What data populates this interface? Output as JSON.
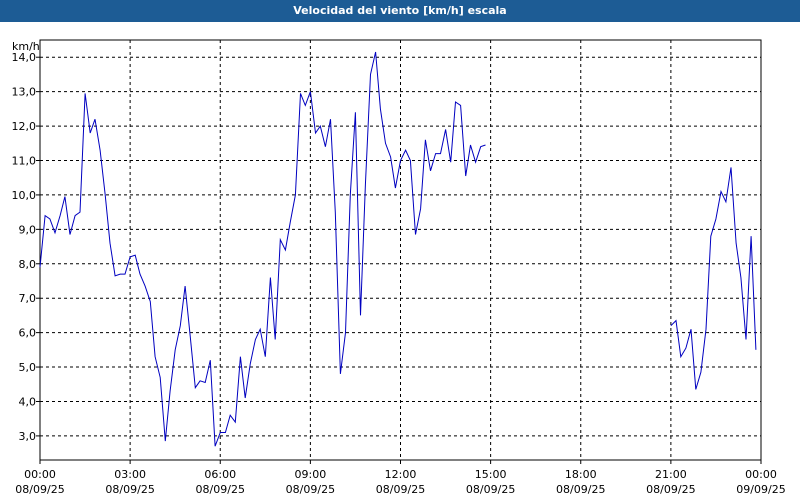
{
  "window": {
    "title": "Velocidad del viento [km/h] escala"
  },
  "chart_data": {
    "type": "line",
    "title": "Velocidad del viento [km/h] escala",
    "ylabel": "km/h",
    "xlabel": "",
    "ylim": [
      2.3,
      14.5
    ],
    "y_ticks": [
      "3,0",
      "4,0",
      "5,0",
      "6,0",
      "7,0",
      "8,0",
      "9,0",
      "10,0",
      "11,0",
      "12,0",
      "13,0",
      "14,0"
    ],
    "y_tick_values": [
      3,
      4,
      5,
      6,
      7,
      8,
      9,
      10,
      11,
      12,
      13,
      14
    ],
    "xlim_hours": [
      0,
      24
    ],
    "x_ticks": [
      {
        "h": 0,
        "time": "00:00",
        "date": "08/09/25"
      },
      {
        "h": 3,
        "time": "03:00",
        "date": "08/09/25"
      },
      {
        "h": 6,
        "time": "06:00",
        "date": "08/09/25"
      },
      {
        "h": 9,
        "time": "09:00",
        "date": "08/09/25"
      },
      {
        "h": 12,
        "time": "12:00",
        "date": "08/09/25"
      },
      {
        "h": 15,
        "time": "15:00",
        "date": "08/09/25"
      },
      {
        "h": 18,
        "time": "18:00",
        "date": "08/09/25"
      },
      {
        "h": 21,
        "time": "21:00",
        "date": "08/09/25"
      },
      {
        "h": 24,
        "time": "00:00",
        "date": "09/09/25"
      }
    ],
    "grid": true,
    "series": [
      {
        "color": "#0000c0",
        "segments": [
          [
            [
              0.0,
              7.9
            ],
            [
              0.17,
              9.4
            ],
            [
              0.33,
              9.3
            ],
            [
              0.5,
              8.9
            ],
            [
              0.67,
              9.4
            ],
            [
              0.83,
              9.95
            ],
            [
              1.0,
              8.85
            ],
            [
              1.17,
              9.4
            ],
            [
              1.33,
              9.5
            ],
            [
              1.5,
              12.95
            ],
            [
              1.67,
              11.8
            ],
            [
              1.83,
              12.2
            ],
            [
              2.0,
              11.3
            ],
            [
              2.17,
              10.0
            ],
            [
              2.33,
              8.6
            ],
            [
              2.5,
              7.65
            ],
            [
              2.67,
              7.7
            ],
            [
              2.83,
              7.7
            ],
            [
              3.0,
              8.2
            ],
            [
              3.17,
              8.25
            ],
            [
              3.33,
              7.7
            ],
            [
              3.5,
              7.35
            ],
            [
              3.67,
              6.9
            ],
            [
              3.83,
              5.3
            ],
            [
              4.0,
              4.7
            ],
            [
              4.17,
              2.85
            ],
            [
              4.33,
              4.3
            ],
            [
              4.5,
              5.5
            ],
            [
              4.67,
              6.2
            ],
            [
              4.83,
              7.35
            ],
            [
              5.0,
              5.9
            ],
            [
              5.17,
              4.4
            ],
            [
              5.33,
              4.6
            ],
            [
              5.5,
              4.55
            ],
            [
              5.67,
              5.2
            ],
            [
              5.83,
              2.7
            ],
            [
              6.0,
              3.1
            ],
            [
              6.17,
              3.1
            ],
            [
              6.33,
              3.6
            ],
            [
              6.5,
              3.4
            ],
            [
              6.67,
              5.3
            ],
            [
              6.83,
              4.1
            ],
            [
              7.0,
              5.1
            ],
            [
              7.17,
              5.8
            ],
            [
              7.33,
              6.1
            ],
            [
              7.5,
              5.3
            ],
            [
              7.67,
              7.6
            ],
            [
              7.83,
              5.8
            ],
            [
              8.0,
              8.7
            ],
            [
              8.17,
              8.4
            ],
            [
              8.33,
              9.2
            ],
            [
              8.5,
              10.0
            ],
            [
              8.67,
              12.95
            ],
            [
              8.83,
              12.6
            ],
            [
              9.0,
              13.0
            ],
            [
              9.17,
              11.8
            ],
            [
              9.33,
              12.0
            ],
            [
              9.5,
              11.4
            ],
            [
              9.67,
              12.2
            ],
            [
              9.83,
              9.5
            ],
            [
              10.0,
              4.8
            ],
            [
              10.17,
              6.0
            ],
            [
              10.33,
              10.0
            ],
            [
              10.5,
              12.4
            ],
            [
              10.67,
              6.5
            ],
            [
              10.83,
              10.3
            ],
            [
              11.0,
              13.5
            ],
            [
              11.17,
              14.15
            ],
            [
              11.33,
              12.5
            ],
            [
              11.5,
              11.5
            ],
            [
              11.67,
              11.1
            ],
            [
              11.83,
              10.2
            ],
            [
              12.0,
              11.0
            ],
            [
              12.17,
              11.3
            ],
            [
              12.33,
              11.0
            ],
            [
              12.5,
              8.85
            ],
            [
              12.67,
              9.6
            ],
            [
              12.83,
              11.6
            ],
            [
              13.0,
              10.7
            ],
            [
              13.17,
              11.2
            ],
            [
              13.33,
              11.2
            ],
            [
              13.5,
              11.9
            ],
            [
              13.67,
              10.95
            ],
            [
              13.83,
              12.7
            ],
            [
              14.0,
              12.6
            ],
            [
              14.17,
              10.55
            ],
            [
              14.33,
              11.45
            ],
            [
              14.5,
              10.95
            ],
            [
              14.67,
              11.4
            ],
            [
              14.83,
              11.45
            ]
          ],
          [
            [
              21.0,
              6.2
            ],
            [
              21.17,
              6.35
            ],
            [
              21.33,
              5.3
            ],
            [
              21.5,
              5.55
            ],
            [
              21.67,
              6.1
            ],
            [
              21.83,
              4.35
            ],
            [
              22.0,
              4.85
            ],
            [
              22.17,
              6.1
            ],
            [
              22.33,
              8.8
            ],
            [
              22.5,
              9.3
            ],
            [
              22.67,
              10.1
            ],
            [
              22.83,
              9.8
            ],
            [
              23.0,
              10.8
            ],
            [
              23.17,
              8.6
            ],
            [
              23.33,
              7.6
            ],
            [
              23.5,
              5.8
            ],
            [
              23.67,
              8.8
            ],
            [
              23.83,
              5.5
            ]
          ]
        ]
      }
    ]
  }
}
